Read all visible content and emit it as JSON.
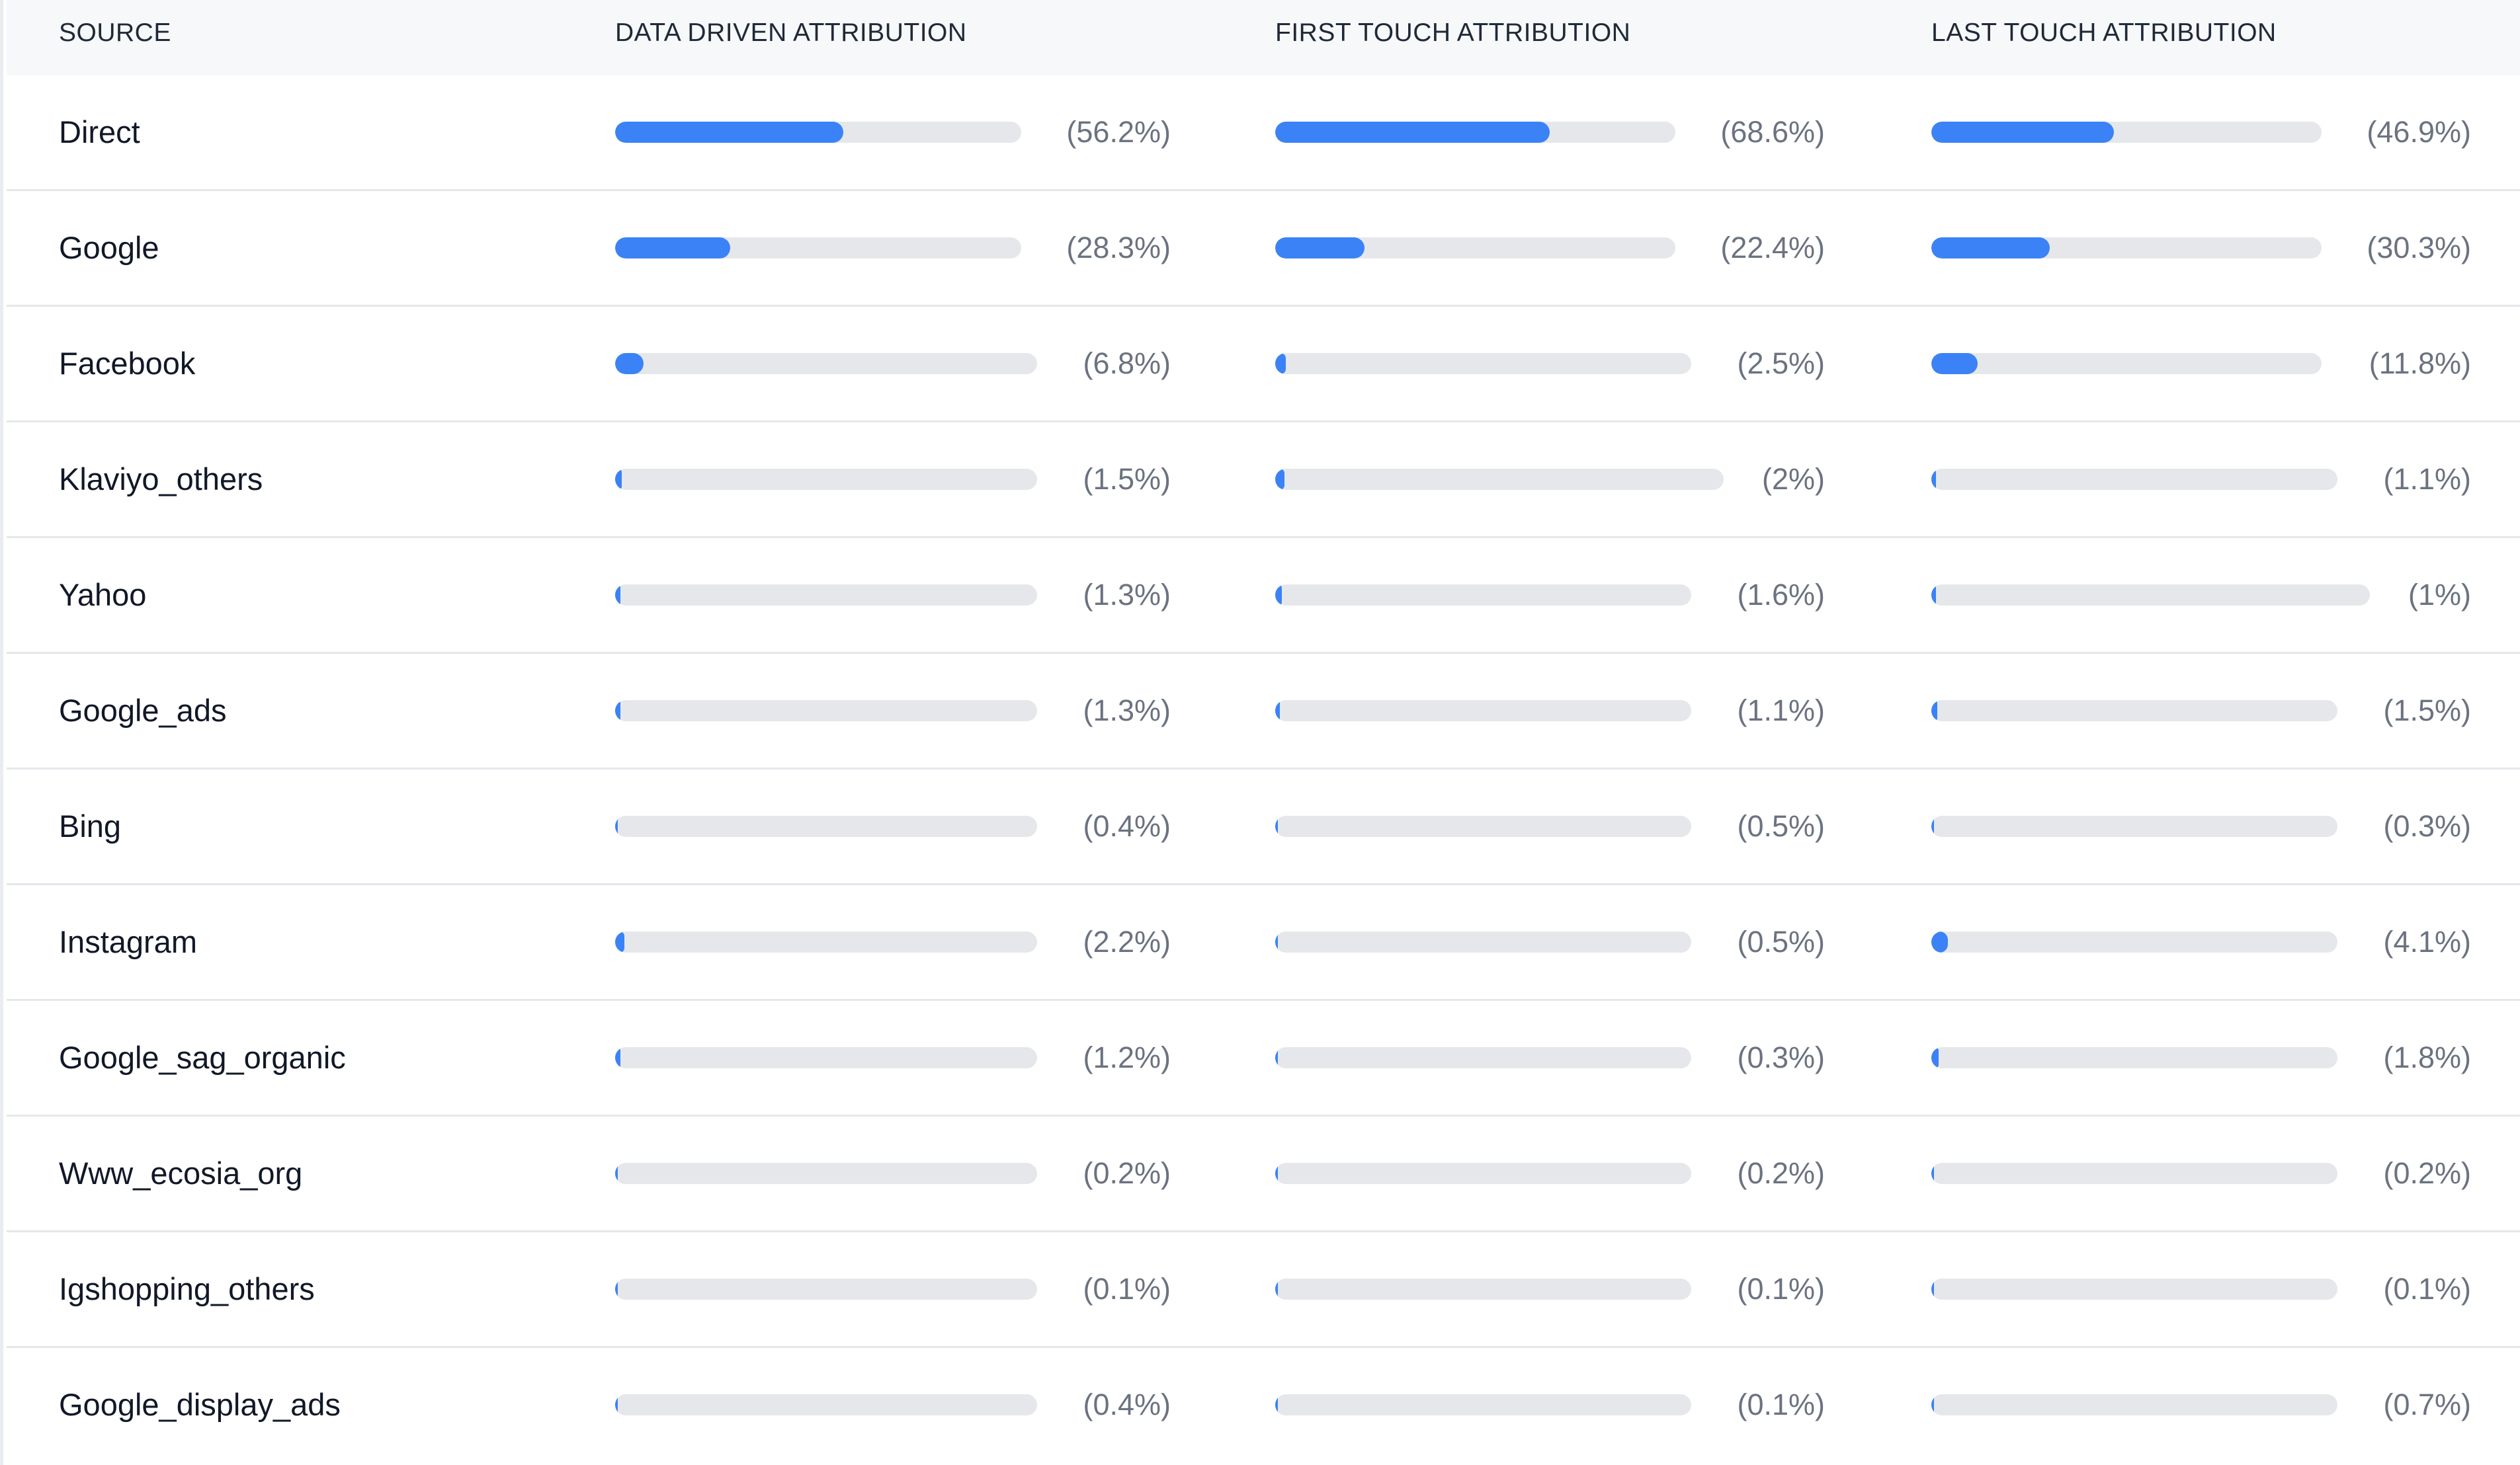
{
  "columns": {
    "source": "SOURCE",
    "data_driven": "DATA DRIVEN ATTRIBUTION",
    "first_touch": "FIRST TOUCH ATTRIBUTION",
    "last_touch": "LAST TOUCH ATTRIBUTION"
  },
  "colors": {
    "bar_fill": "#3b82f6",
    "bar_track": "#e5e7eb",
    "header_bg": "#f6f8fa"
  },
  "rows": [
    {
      "source": "Direct",
      "data_driven": {
        "value": 56.2,
        "label": "(56.2%)"
      },
      "first_touch": {
        "value": 68.6,
        "label": "(68.6%)"
      },
      "last_touch": {
        "value": 46.9,
        "label": "(46.9%)"
      }
    },
    {
      "source": "Google",
      "data_driven": {
        "value": 28.3,
        "label": "(28.3%)"
      },
      "first_touch": {
        "value": 22.4,
        "label": "(22.4%)"
      },
      "last_touch": {
        "value": 30.3,
        "label": "(30.3%)"
      }
    },
    {
      "source": "Facebook",
      "data_driven": {
        "value": 6.8,
        "label": "(6.8%)"
      },
      "first_touch": {
        "value": 2.5,
        "label": "(2.5%)"
      },
      "last_touch": {
        "value": 11.8,
        "label": "(11.8%)"
      }
    },
    {
      "source": "Klaviyo_others",
      "data_driven": {
        "value": 1.5,
        "label": "(1.5%)"
      },
      "first_touch": {
        "value": 2,
        "label": "(2%)"
      },
      "last_touch": {
        "value": 1.1,
        "label": "(1.1%)"
      }
    },
    {
      "source": "Yahoo",
      "data_driven": {
        "value": 1.3,
        "label": "(1.3%)"
      },
      "first_touch": {
        "value": 1.6,
        "label": "(1.6%)"
      },
      "last_touch": {
        "value": 1,
        "label": "(1%)"
      }
    },
    {
      "source": "Google_ads",
      "data_driven": {
        "value": 1.3,
        "label": "(1.3%)"
      },
      "first_touch": {
        "value": 1.1,
        "label": "(1.1%)"
      },
      "last_touch": {
        "value": 1.5,
        "label": "(1.5%)"
      }
    },
    {
      "source": "Bing",
      "data_driven": {
        "value": 0.4,
        "label": "(0.4%)"
      },
      "first_touch": {
        "value": 0.5,
        "label": "(0.5%)"
      },
      "last_touch": {
        "value": 0.3,
        "label": "(0.3%)"
      }
    },
    {
      "source": "Instagram",
      "data_driven": {
        "value": 2.2,
        "label": "(2.2%)"
      },
      "first_touch": {
        "value": 0.5,
        "label": "(0.5%)"
      },
      "last_touch": {
        "value": 4.1,
        "label": "(4.1%)"
      }
    },
    {
      "source": "Google_sag_organic",
      "data_driven": {
        "value": 1.2,
        "label": "(1.2%)"
      },
      "first_touch": {
        "value": 0.3,
        "label": "(0.3%)"
      },
      "last_touch": {
        "value": 1.8,
        "label": "(1.8%)"
      }
    },
    {
      "source": "Www_ecosia_org",
      "data_driven": {
        "value": 0.2,
        "label": "(0.2%)"
      },
      "first_touch": {
        "value": 0.2,
        "label": "(0.2%)"
      },
      "last_touch": {
        "value": 0.2,
        "label": "(0.2%)"
      }
    },
    {
      "source": "Igshopping_others",
      "data_driven": {
        "value": 0.1,
        "label": "(0.1%)"
      },
      "first_touch": {
        "value": 0.1,
        "label": "(0.1%)"
      },
      "last_touch": {
        "value": 0.1,
        "label": "(0.1%)"
      }
    },
    {
      "source": "Google_display_ads",
      "data_driven": {
        "value": 0.4,
        "label": "(0.4%)"
      },
      "first_touch": {
        "value": 0.1,
        "label": "(0.1%)"
      },
      "last_touch": {
        "value": 0.7,
        "label": "(0.7%)"
      }
    }
  ]
}
